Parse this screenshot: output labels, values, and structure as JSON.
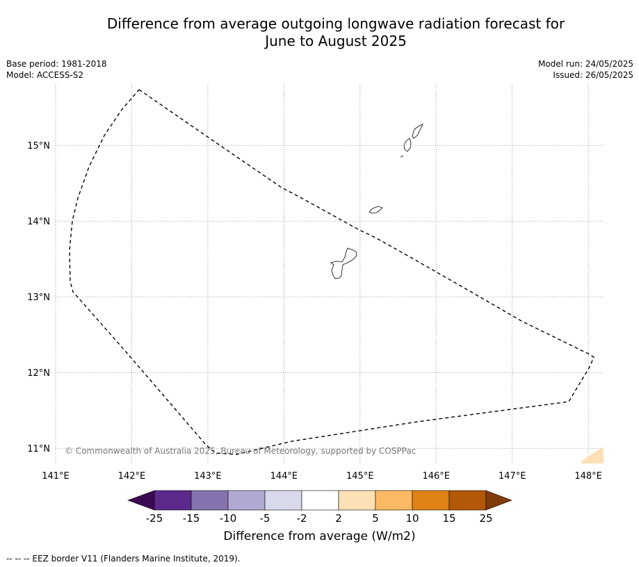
{
  "title_line1": "Difference from average outgoing longwave radiation forecast for",
  "title_line2": "June to August 2025",
  "meta": {
    "base_period": "Base period: 1981-2018",
    "model": "Model: ACCESS-S2",
    "model_run": "Model run: 24/05/2025",
    "issued": "Issued: 26/05/2025"
  },
  "map": {
    "lon_range": [
      141.0,
      148.2
    ],
    "lat_range": [
      10.8,
      15.8
    ],
    "lon_ticks": [
      {
        "value": 141,
        "label": "141°E"
      },
      {
        "value": 142,
        "label": "142°E"
      },
      {
        "value": 143,
        "label": "143°E"
      },
      {
        "value": 144,
        "label": "144°E"
      },
      {
        "value": 145,
        "label": "145°E"
      },
      {
        "value": 146,
        "label": "146°E"
      },
      {
        "value": 147,
        "label": "147°E"
      },
      {
        "value": 148,
        "label": "148°E"
      }
    ],
    "lat_ticks": [
      {
        "value": 15,
        "label": "15°N"
      },
      {
        "value": 14,
        "label": "14°N"
      },
      {
        "value": 13,
        "label": "13°N"
      },
      {
        "value": 12,
        "label": "12°N"
      },
      {
        "value": 11,
        "label": "11°N"
      }
    ],
    "copyright": "© Commonwealth of Australia 2025, Bureau of Meteorology, supported by COSPPac"
  },
  "colorbar": {
    "colors": [
      "#3b0a52",
      "#5b2a8c",
      "#8573b0",
      "#b0a9d2",
      "#d9d9ec",
      "#ffffff",
      "#fde0b6",
      "#fdb863",
      "#e08214",
      "#b35806",
      "#7f3b08"
    ],
    "tick_labels": [
      "-25",
      "-15",
      "-10",
      "-5",
      "-2",
      "2",
      "5",
      "10",
      "15",
      "25"
    ],
    "title": "Difference from average (W/m2)"
  },
  "footnote": "--  --  -- EEZ border V11 (Flanders Marine Institute, 2019)."
}
